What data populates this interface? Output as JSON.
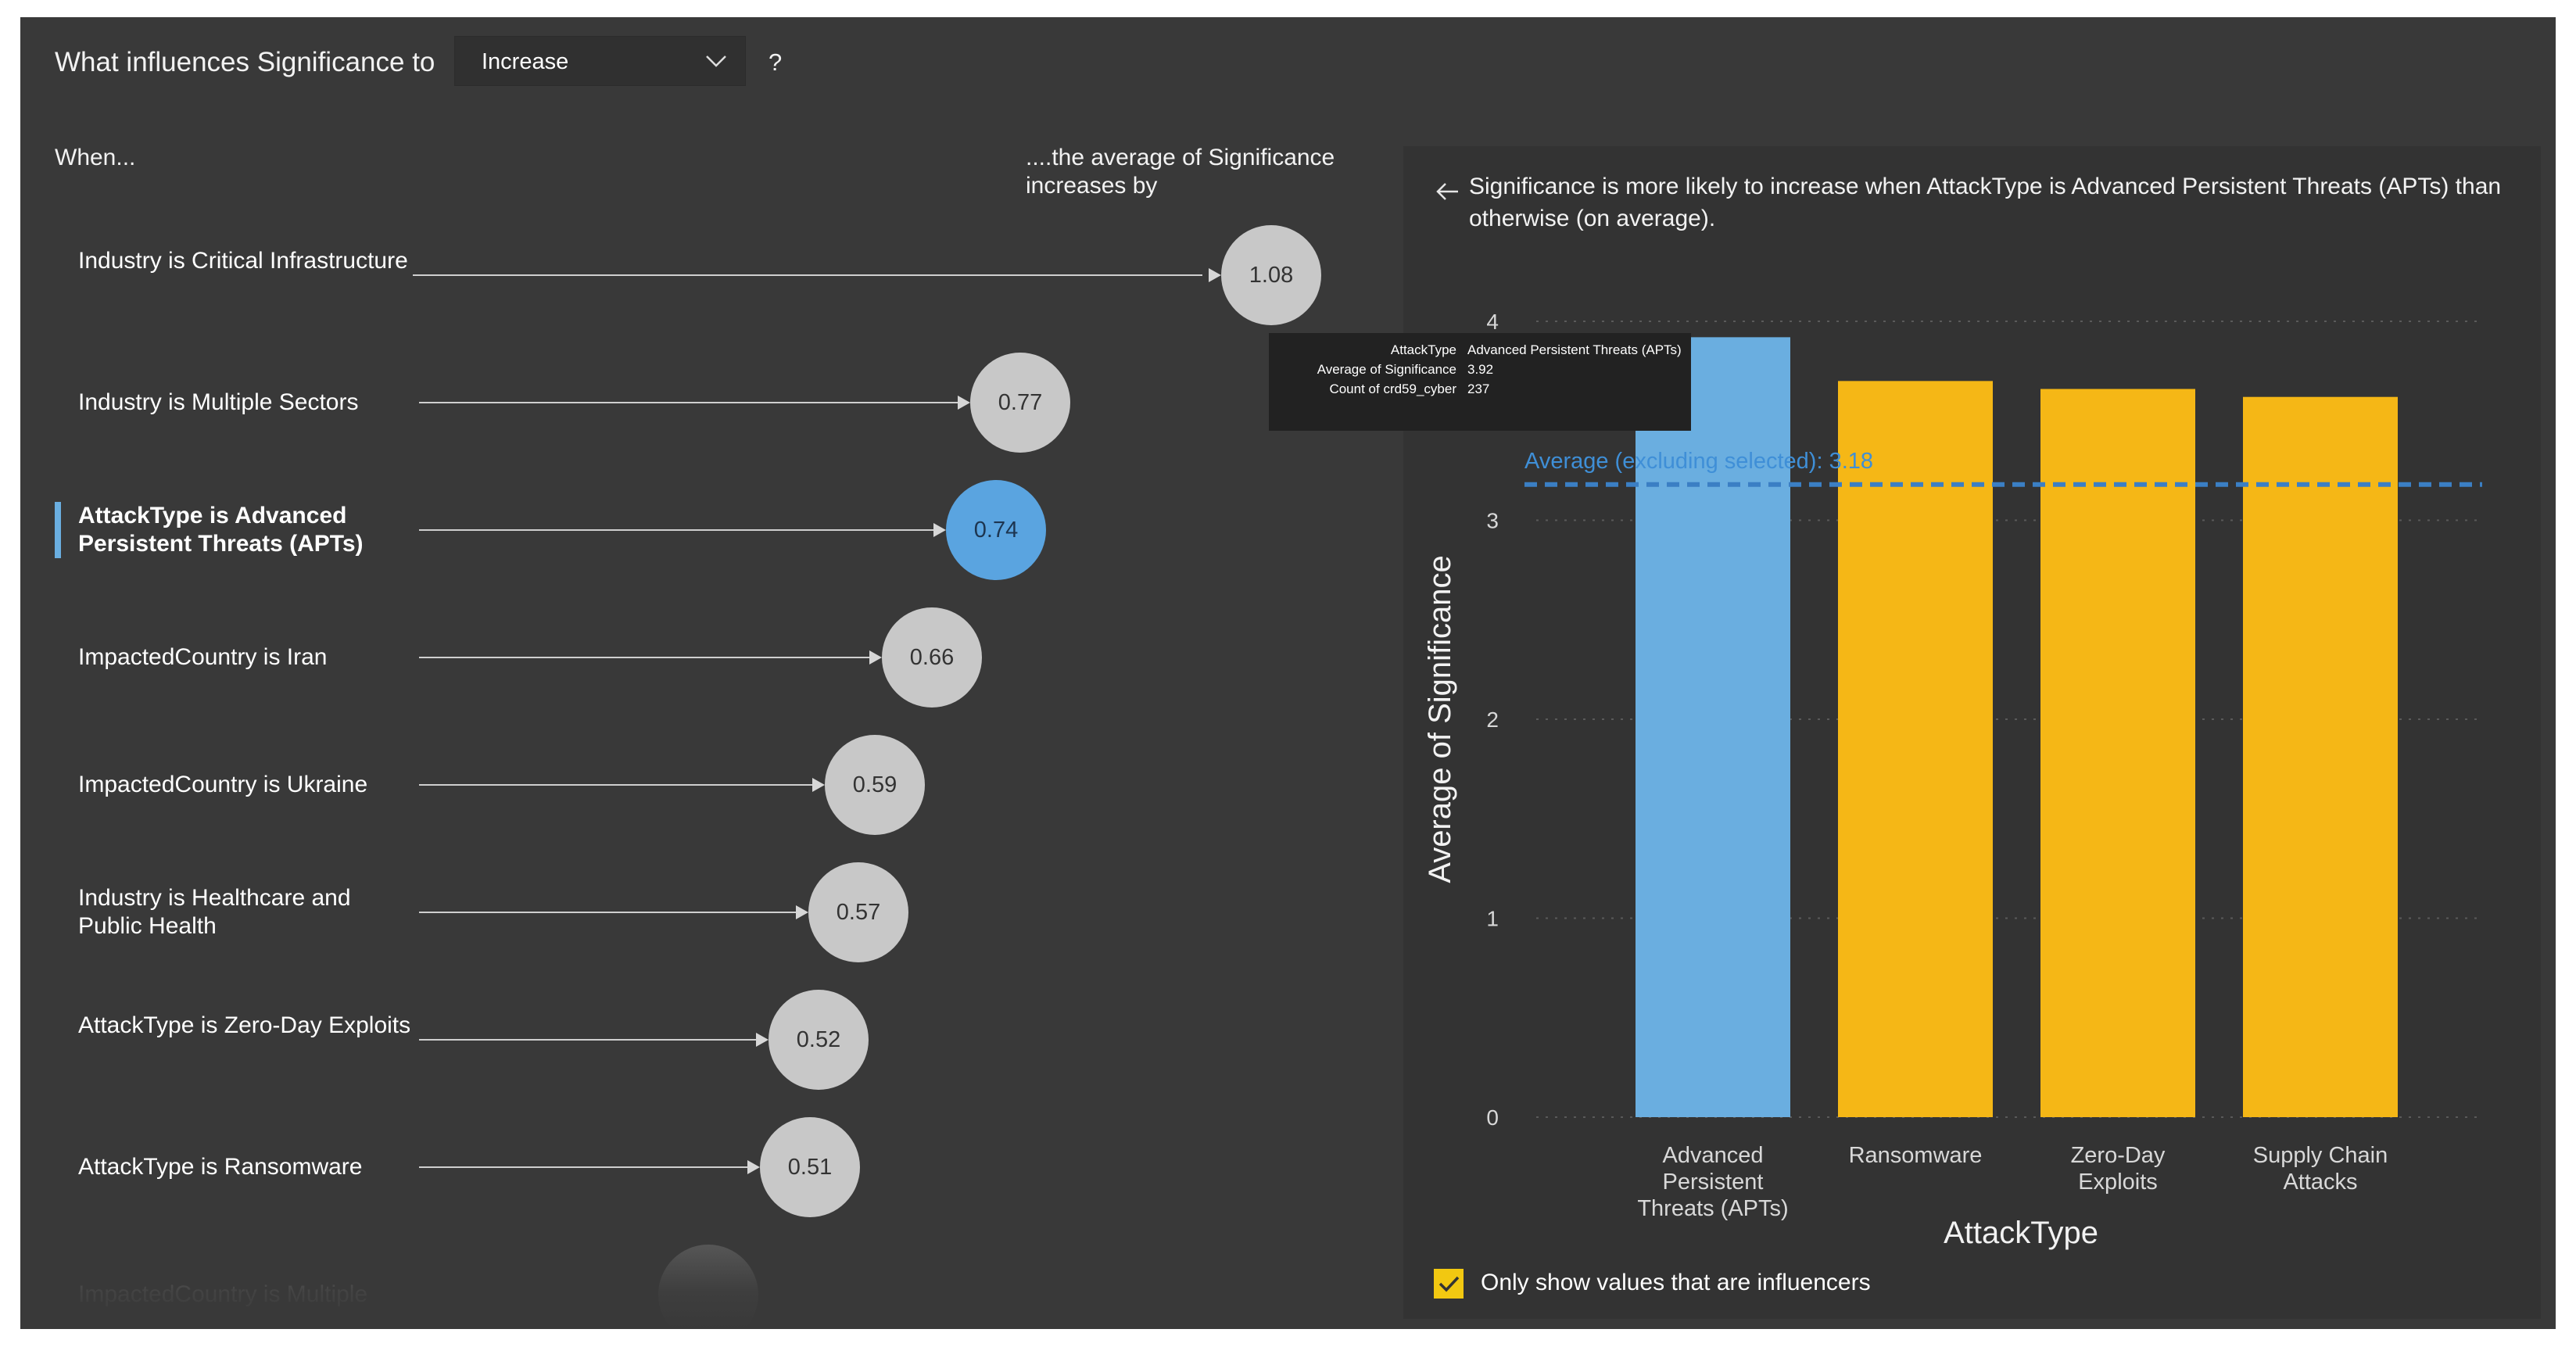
{
  "header": {
    "question": "What influences Significance to",
    "dropdown_value": "Increase",
    "help_mark": "?"
  },
  "influencers": {
    "when_label": "When...",
    "increase_label": "....the average of Significance increases by",
    "items": [
      {
        "label": "Industry is Critical Infrastructure",
        "value": "1.08",
        "selected": false
      },
      {
        "label": "Industry is Multiple Sectors",
        "value": "0.77",
        "selected": false
      },
      {
        "label": "AttackType is Advanced Persistent Threats (APTs)",
        "value": "0.74",
        "selected": true
      },
      {
        "label": "ImpactedCountry is Iran",
        "value": "0.66",
        "selected": false
      },
      {
        "label": "ImpactedCountry is Ukraine",
        "value": "0.59",
        "selected": false
      },
      {
        "label": "Industry is Healthcare and Public Health",
        "value": "0.57",
        "selected": false
      },
      {
        "label": "AttackType is Zero-Day Exploits",
        "value": "0.52",
        "selected": false
      },
      {
        "label": "AttackType is Ransomware",
        "value": "0.51",
        "selected": false
      },
      {
        "label": "ImpactedCountry is Multiple",
        "value": "",
        "selected": false
      }
    ]
  },
  "detail": {
    "description": "Significance is more likely to increase when AttackType is Advanced Persistent Threats (APTs) than otherwise (on average).",
    "checkbox_label": "Only show values that are influencers",
    "checkbox_checked": true
  },
  "tooltip": {
    "rows": [
      {
        "key": "AttackType",
        "value": "Advanced Persistent Threats (APTs)"
      },
      {
        "key": "Average of Significance",
        "value": "3.92"
      },
      {
        "key": "Count of crd59_cyber",
        "value": "237"
      }
    ]
  },
  "colors": {
    "selected": "#6aaee0",
    "bar_default": "#f5b716",
    "average_line": "#3b7fc4",
    "average_label": "#3f8fd7"
  },
  "chart_data": {
    "type": "bar",
    "title": "",
    "xlabel": "AttackType",
    "ylabel": "Average of Significance",
    "categories": [
      "Advanced Persistent Threats (APTs)",
      "Ransomware",
      "Zero-Day Exploits",
      "Supply Chain Attacks"
    ],
    "category_lines": [
      [
        "Advanced",
        "Persistent",
        "Threats (APTs)"
      ],
      [
        "Ransomware"
      ],
      [
        "Zero-Day",
        "Exploits"
      ],
      [
        "Supply Chain",
        "Attacks"
      ]
    ],
    "values": [
      3.92,
      3.7,
      3.66,
      3.62
    ],
    "selected_index": 0,
    "ylim": [
      0,
      4
    ],
    "yticks": [
      0,
      1,
      2,
      3,
      4
    ],
    "average_line": {
      "label": "Average (excluding selected): 3.18",
      "value": 3.18
    },
    "grid": true
  }
}
